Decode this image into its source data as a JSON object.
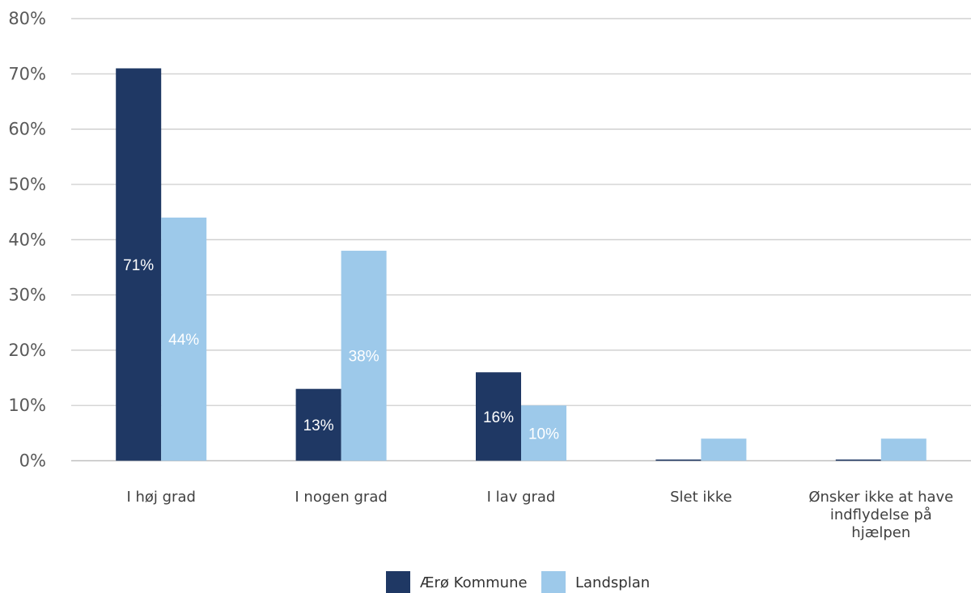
{
  "chart_data": {
    "type": "bar",
    "title": "",
    "xlabel": "",
    "ylabel": "",
    "ylim": [
      0,
      80
    ],
    "yticks": [
      "0%",
      "10%",
      "20%",
      "30%",
      "40%",
      "50%",
      "60%",
      "70%",
      "80%"
    ],
    "grid": true,
    "legend_position": "bottom",
    "categories": [
      [
        "I høj grad"
      ],
      [
        "I nogen grad"
      ],
      [
        "I lav grad"
      ],
      [
        "Slet ikke"
      ],
      [
        "Ønsker ikke at have",
        "indflydelse på",
        "hjælpen"
      ]
    ],
    "series": [
      {
        "name": "Ærø Kommune",
        "color": "#1f3864",
        "values": [
          71,
          13,
          16,
          0,
          0
        ],
        "labels": [
          "71%",
          "13%",
          "16%",
          "",
          ""
        ]
      },
      {
        "name": "Landsplan",
        "color": "#9dc9ea",
        "values": [
          44,
          38,
          10,
          4,
          4
        ],
        "labels": [
          "44%",
          "38%",
          "10%",
          "",
          ""
        ]
      }
    ]
  }
}
